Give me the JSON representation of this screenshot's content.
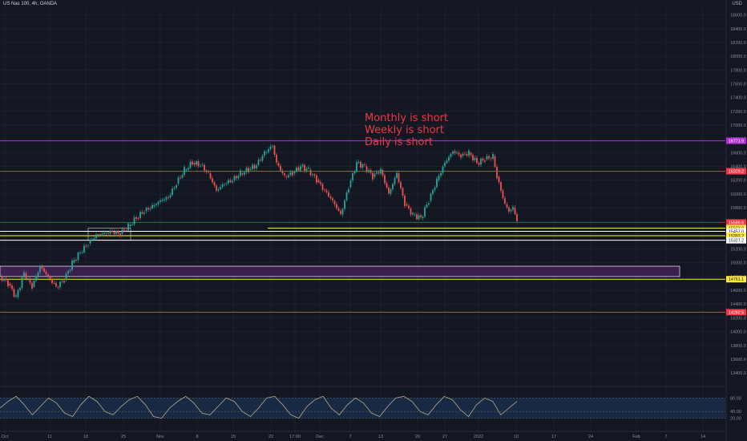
{
  "header": {
    "symbol_title": "US Nas 100, 4h, OANDA",
    "currency": "USD"
  },
  "annotation": {
    "lines": [
      "Monthly is short",
      "Weekly is short",
      "Daily is short"
    ]
  },
  "colors": {
    "background": "#131722",
    "up_candle": "#26a69a",
    "down_candle": "#ef5350",
    "red_line": "#f23645",
    "purple_line": "#b133d6",
    "yellow_line": "#ffeb3b",
    "white_line": "#ffffff",
    "zone_fill": "#3b1f4d",
    "rsi_line": "#b8a88a",
    "rsi_band": "#1e3a5f"
  },
  "chart_data": {
    "type": "candlestick",
    "title": "US Nas 100, 4h, OANDA",
    "y_axis": {
      "range": [
        13250,
        18700
      ],
      "ticks": [
        18600,
        18400,
        18200,
        18000,
        17800,
        17600,
        17400,
        17200,
        17000,
        16800,
        16600,
        16400,
        16200,
        16000,
        15800,
        15600,
        15400,
        15200,
        15000,
        14800,
        14600,
        14400,
        14200,
        14000,
        13800,
        13600,
        13400
      ]
    },
    "x_axis": {
      "labels": [
        "Oct",
        "11",
        "18",
        "25",
        "Nov",
        "8",
        "15",
        "22",
        "17:00",
        "Dec",
        "7",
        "13",
        "20",
        "27",
        "2022",
        "10",
        "17",
        "24",
        "Feb",
        "7",
        "14"
      ]
    },
    "series": [
      {
        "type": "close_path",
        "points": [
          [
            0,
            14800
          ],
          [
            10,
            14700
          ],
          [
            20,
            14500
          ],
          [
            30,
            14850
          ],
          [
            40,
            14650
          ],
          [
            50,
            14950
          ],
          [
            60,
            14800
          ],
          [
            70,
            14650
          ],
          [
            80,
            14750
          ],
          [
            90,
            15000
          ],
          [
            100,
            15150
          ],
          [
            110,
            15280
          ],
          [
            120,
            15400
          ],
          [
            130,
            15430
          ],
          [
            140,
            15450
          ],
          [
            150,
            15420
          ],
          [
            160,
            15530
          ],
          [
            170,
            15650
          ],
          [
            180,
            15750
          ],
          [
            190,
            15820
          ],
          [
            200,
            15900
          ],
          [
            210,
            15950
          ],
          [
            220,
            16150
          ],
          [
            230,
            16350
          ],
          [
            240,
            16450
          ],
          [
            250,
            16420
          ],
          [
            260,
            16300
          ],
          [
            270,
            16050
          ],
          [
            280,
            16150
          ],
          [
            290,
            16200
          ],
          [
            300,
            16300
          ],
          [
            310,
            16350
          ],
          [
            320,
            16420
          ],
          [
            330,
            16600
          ],
          [
            340,
            16700
          ],
          [
            345,
            16450
          ],
          [
            355,
            16250
          ],
          [
            365,
            16300
          ],
          [
            375,
            16400
          ],
          [
            385,
            16350
          ],
          [
            395,
            16200
          ],
          [
            405,
            16050
          ],
          [
            415,
            15900
          ],
          [
            425,
            15700
          ],
          [
            435,
            16100
          ],
          [
            445,
            16450
          ],
          [
            455,
            16400
          ],
          [
            465,
            16250
          ],
          [
            475,
            16350
          ],
          [
            485,
            16000
          ],
          [
            495,
            16300
          ],
          [
            505,
            15850
          ],
          [
            515,
            15700
          ],
          [
            525,
            15650
          ],
          [
            535,
            15900
          ],
          [
            545,
            16200
          ],
          [
            555,
            16450
          ],
          [
            565,
            16620
          ],
          [
            575,
            16550
          ],
          [
            585,
            16600
          ],
          [
            595,
            16450
          ],
          [
            605,
            16500
          ],
          [
            615,
            16550
          ],
          [
            620,
            16250
          ],
          [
            625,
            16050
          ],
          [
            630,
            15850
          ],
          [
            635,
            15750
          ],
          [
            640,
            15800
          ],
          [
            645,
            15620
          ]
        ]
      }
    ],
    "levels": [
      {
        "value": 16771.9,
        "label": "16771.9",
        "color": "#b133d6"
      },
      {
        "value": 16329.2,
        "label": "16329.2",
        "color": "#f23645"
      },
      {
        "value": 15586.6,
        "label": "15586.6",
        "color": "#f23645"
      },
      {
        "value": 15503.0,
        "label": "15503.0",
        "color": "#ffeb3b"
      },
      {
        "value": 15457.0,
        "label": "15457.0",
        "color": "#ffffff"
      },
      {
        "value": 15393.2,
        "label": "15393.2",
        "color": "#ffeb3b"
      },
      {
        "value": 15327.2,
        "label": "15327.2",
        "color": "#ffffff"
      },
      {
        "value": 14761.1,
        "label": "14761.1",
        "color": "#ffeb3b"
      },
      {
        "value": 14282.5,
        "label": "14282.5",
        "color": "#f23645"
      }
    ],
    "zone": {
      "low": 14800,
      "high": 14950,
      "color": "#3b1f4d"
    },
    "rsi": {
      "ticks": [
        "80.00",
        "40.00",
        "20.00"
      ],
      "levels": [
        80,
        40,
        20
      ],
      "values": [
        50,
        70,
        85,
        60,
        30,
        55,
        80,
        65,
        35,
        25,
        60,
        85,
        70,
        40,
        30,
        55,
        75,
        85,
        60,
        25,
        20,
        50,
        70,
        85,
        65,
        35,
        30,
        55,
        80,
        70,
        40,
        25,
        50,
        80,
        85,
        60,
        30,
        20,
        55,
        75,
        85,
        50,
        30,
        60,
        80,
        65,
        35,
        25,
        55,
        80,
        85,
        70,
        40,
        30,
        60,
        85,
        75,
        45,
        25,
        60,
        80,
        70,
        30,
        50,
        70
      ]
    }
  }
}
